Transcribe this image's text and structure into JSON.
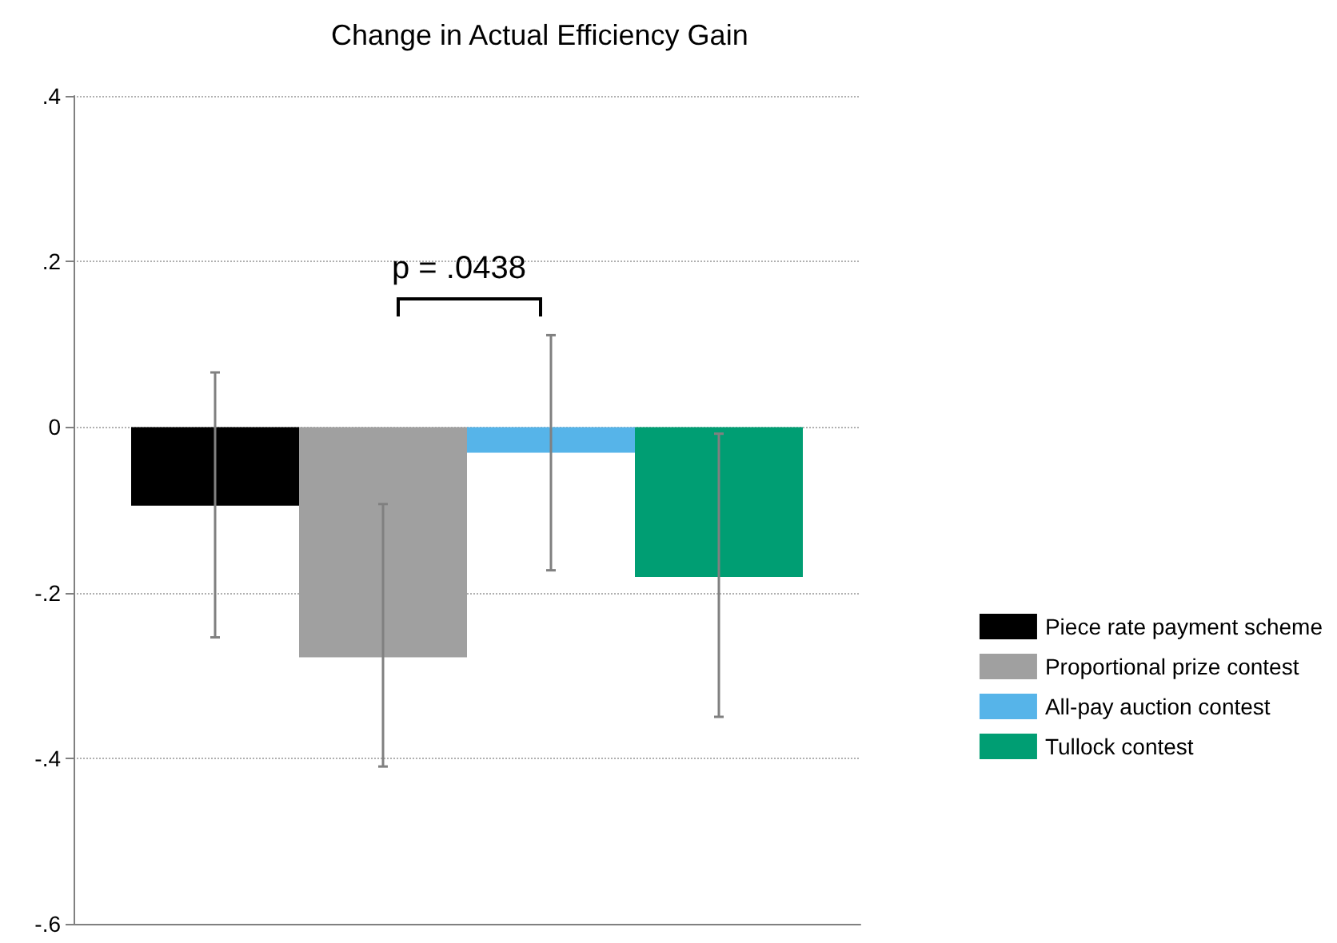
{
  "chart_data": {
    "type": "bar",
    "title": "Change in Actual Efficiency Gain",
    "categories": [
      null
    ],
    "series": [
      {
        "name": "Piece rate payment scheme",
        "color": "#000000",
        "values": [
          -0.095
        ],
        "errors": [
          [
            -0.254,
            0.066
          ]
        ]
      },
      {
        "name": "Proportional prize contest",
        "color": "#a0a0a0",
        "values": [
          -0.278
        ],
        "errors": [
          [
            -0.41,
            -0.093
          ]
        ]
      },
      {
        "name": "All-pay auction contest",
        "color": "#56b4e9",
        "values": [
          -0.031
        ],
        "errors": [
          [
            -0.173,
            0.111
          ]
        ]
      },
      {
        "name": "Tullock contest",
        "color": "#009e73",
        "values": [
          -0.181
        ],
        "errors": [
          [
            -0.35,
            -0.008
          ]
        ]
      }
    ],
    "ylim": [
      -0.6,
      0.4
    ],
    "yticks": [
      {
        "value": -0.6,
        "label": "-.6"
      },
      {
        "value": -0.4,
        "label": "-.4"
      },
      {
        "value": -0.2,
        "label": "-.2"
      },
      0,
      {
        "value": 0.2,
        "label": ".2"
      },
      {
        "value": 0.4,
        "label": ".4"
      }
    ],
    "grid": "y",
    "legend": "bottom right",
    "annotations": [
      "p = .0438"
    ]
  }
}
